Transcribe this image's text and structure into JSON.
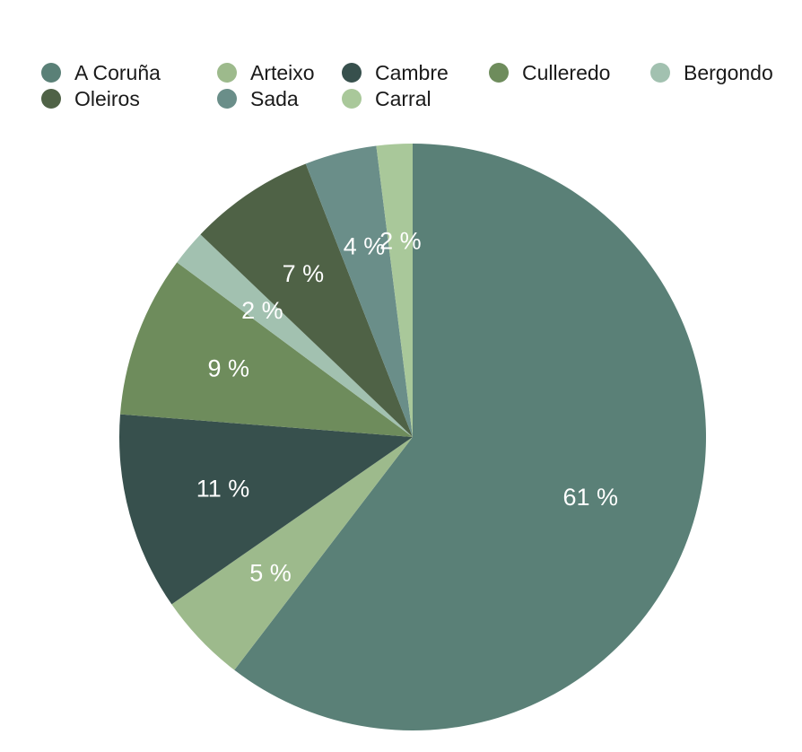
{
  "chart_data": {
    "type": "pie",
    "title": "",
    "legend_position": "top",
    "series": [
      {
        "name": "A Coruña",
        "value": 61,
        "label": "61 %",
        "color": "#5a8077"
      },
      {
        "name": "Arteixo",
        "value": 5,
        "label": "5 %",
        "color": "#9dba8c"
      },
      {
        "name": "Cambre",
        "value": 11,
        "label": "11 %",
        "color": "#37504d"
      },
      {
        "name": "Culleredo",
        "value": 9,
        "label": "9 %",
        "color": "#6e8c5c"
      },
      {
        "name": "Bergondo",
        "value": 2,
        "label": "2 %",
        "color": "#a2c1b0"
      },
      {
        "name": "Oleiros",
        "value": 7,
        "label": "7 %",
        "color": "#4f6246"
      },
      {
        "name": "Sada",
        "value": 4,
        "label": "4 %",
        "color": "#6a8e89"
      },
      {
        "name": "Carral",
        "value": 2,
        "label": "2 %",
        "color": "#a9c89a"
      }
    ]
  }
}
